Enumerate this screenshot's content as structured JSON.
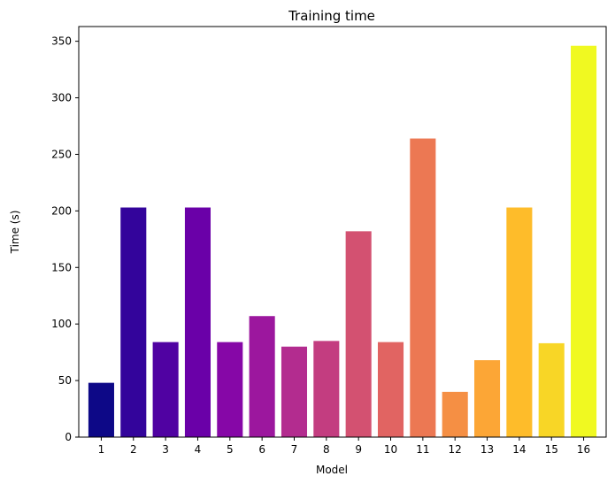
{
  "chart_data": {
    "type": "bar",
    "title": "Training time",
    "xlabel": "Model",
    "ylabel": "Time (s)",
    "categories": [
      "1",
      "2",
      "3",
      "4",
      "5",
      "6",
      "7",
      "8",
      "9",
      "10",
      "11",
      "12",
      "13",
      "14",
      "15",
      "16"
    ],
    "values": [
      48,
      203,
      84,
      203,
      84,
      107,
      80,
      85,
      182,
      84,
      264,
      40,
      68,
      203,
      83,
      346
    ],
    "ylim": [
      0,
      363
    ],
    "yticks": [
      0,
      50,
      100,
      150,
      200,
      250,
      300,
      350
    ],
    "grid": false,
    "colors": [
      "#0d0887",
      "#33049b",
      "#5002a2",
      "#6a00a8",
      "#8607a7",
      "#9c179e",
      "#b32c8f",
      "#c33d80",
      "#d35171",
      "#e16462",
      "#ec7853",
      "#f58f44",
      "#fca636",
      "#febc2a",
      "#f8d626",
      "#f0f921"
    ]
  }
}
